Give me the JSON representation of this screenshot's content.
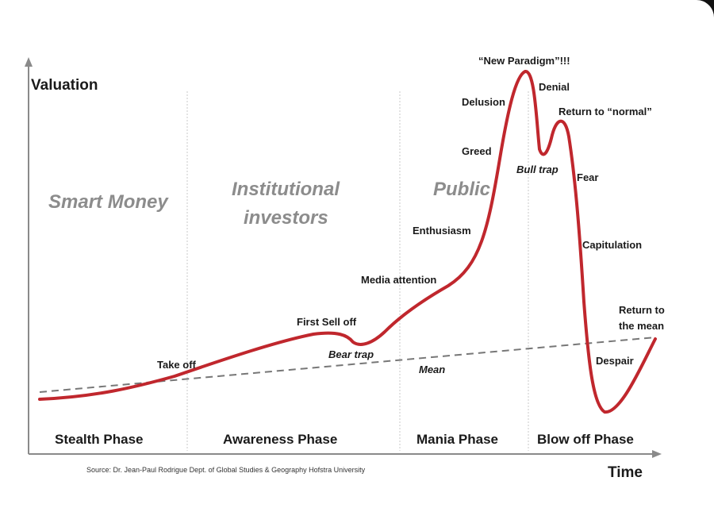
{
  "axes": {
    "y_label": "Valuation",
    "x_label": "Time"
  },
  "groups": {
    "smart_money": "Smart Money",
    "institutional_1": "Institutional",
    "institutional_2": "investors",
    "public": "Public"
  },
  "annotations": {
    "take_off": "Take off",
    "first_sell_off": "First Sell off",
    "bear_trap": "Bear trap",
    "media_attention": "Media attention",
    "enthusiasm": "Enthusiasm",
    "greed": "Greed",
    "delusion": "Delusion",
    "new_paradigm": "“New Paradigm”!!!",
    "denial": "Denial",
    "return_to_normal": "Return to “normal”",
    "bull_trap": "Bull trap",
    "fear": "Fear",
    "capitulation": "Capitulation",
    "return_to_mean_1": "Return to",
    "return_to_mean_2": "the mean",
    "despair": "Despair",
    "mean": "Mean"
  },
  "phases": {
    "stealth": "Stealth Phase",
    "awareness": "Awareness Phase",
    "mania": "Mania Phase",
    "blow_off": "Blow off Phase"
  },
  "source": "Source: Dr. Jean-Paul Rodrigue Dept. of Global Studies & Geography Hofstra University",
  "colors": {
    "curve": "#c0272d",
    "mean_line": "#777777",
    "axis": "#8a8a8a",
    "group_text": "#8c8c8c"
  }
}
